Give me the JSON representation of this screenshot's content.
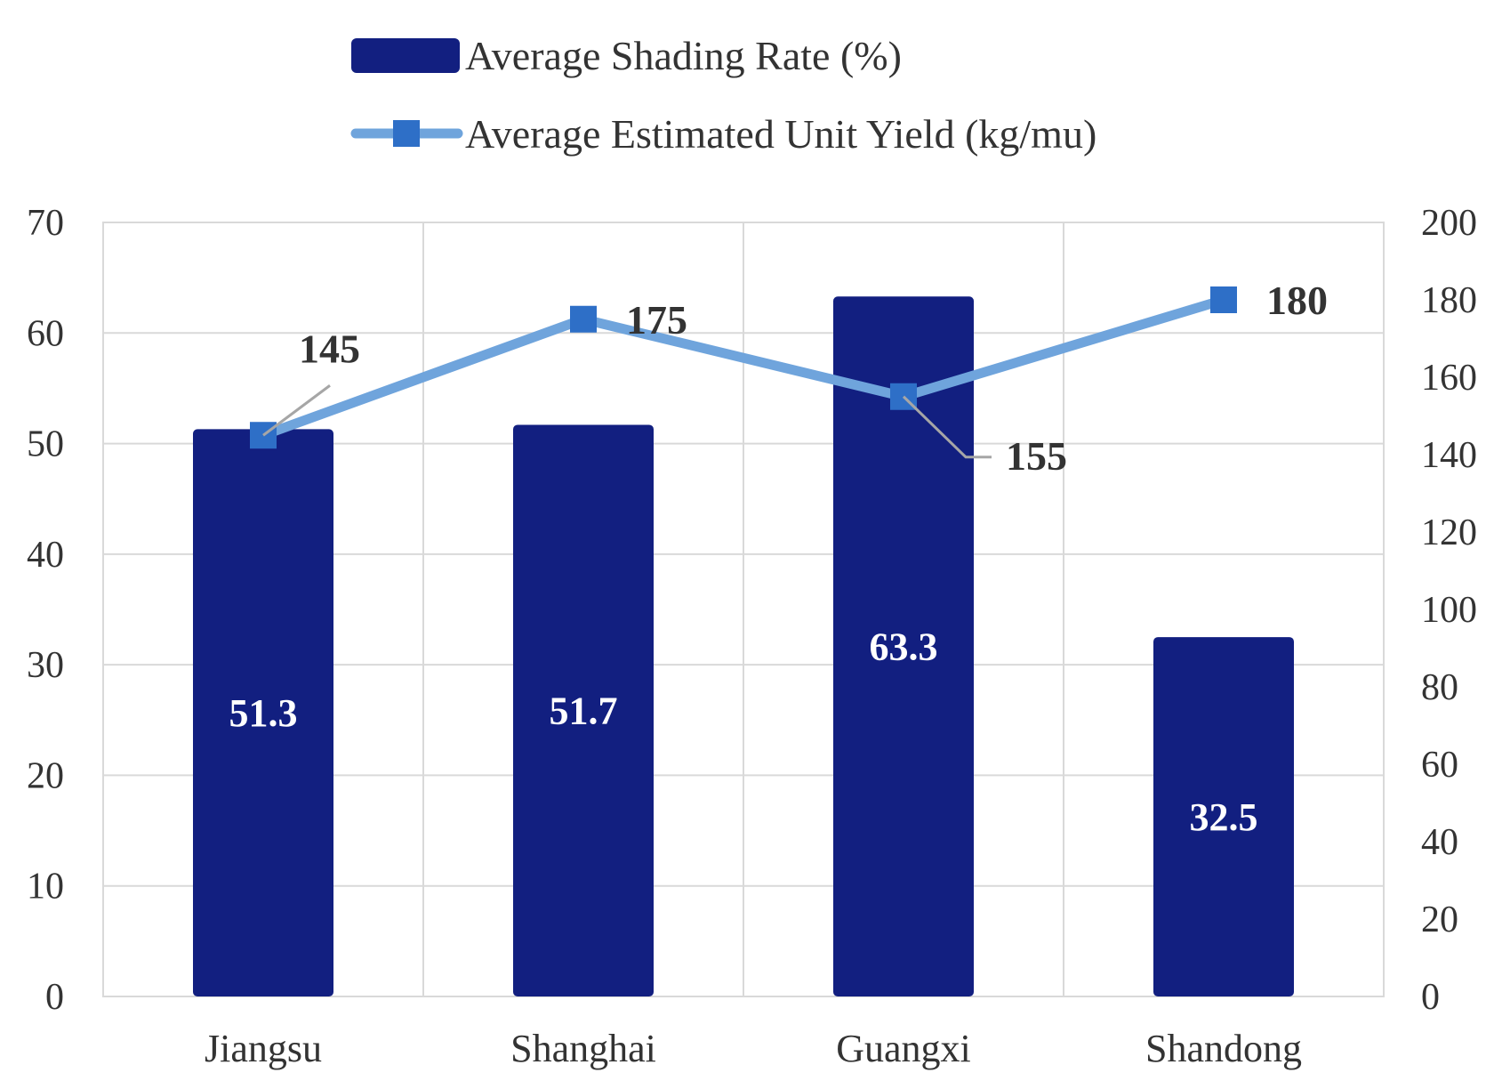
{
  "chart_data": {
    "type": "bar",
    "categories": [
      "Jiangsu",
      "Shanghai",
      "Guangxi",
      "Shandong"
    ],
    "series": [
      {
        "name": "Average Shading Rate (%)",
        "type": "bar",
        "axis": "left",
        "values": [
          51.3,
          51.7,
          63.3,
          32.5
        ],
        "labels": [
          "51.3",
          "51.7",
          "63.3",
          "32.5"
        ],
        "color": "#121F80"
      },
      {
        "name": "Average Estimated Unit Yield (kg/mu)",
        "type": "line",
        "axis": "right",
        "values": [
          145,
          175,
          155,
          180
        ],
        "labels": [
          "145",
          "175",
          "155",
          "180"
        ],
        "line_color": "#6FA4DC",
        "marker_color": "#2E6FC7",
        "marker": "square"
      }
    ],
    "y_left": {
      "min": 0,
      "max": 70,
      "step": 10,
      "ticks": [
        "0",
        "10",
        "20",
        "30",
        "40",
        "50",
        "60",
        "70"
      ]
    },
    "y_right": {
      "min": 0,
      "max": 200,
      "step": 20,
      "ticks": [
        "0",
        "20",
        "40",
        "60",
        "80",
        "100",
        "120",
        "140",
        "160",
        "180",
        "200"
      ]
    },
    "grid": true,
    "legend_position": "top"
  }
}
